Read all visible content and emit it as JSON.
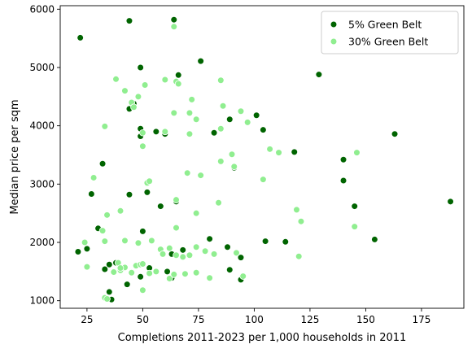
{
  "chart_data": {
    "type": "scatter",
    "xlabel": "Completions 2011-2023 per 1,000 households in 2011",
    "ylabel": "Median price per sqm",
    "xlim": [
      13,
      194
    ],
    "ylim": [
      870,
      6060
    ],
    "xticks": [
      25,
      50,
      75,
      100,
      125,
      150,
      175
    ],
    "yticks": [
      1000,
      2000,
      3000,
      4000,
      5000,
      6000
    ],
    "grid": false,
    "legend_position": "top-right",
    "series": [
      {
        "name": "5% Green Belt",
        "color": "#006400",
        "points": [
          [
            22,
            5510
          ],
          [
            44,
            5800
          ],
          [
            64,
            5820
          ],
          [
            76,
            5110
          ],
          [
            49,
            5000
          ],
          [
            66,
            4870
          ],
          [
            129,
            4880
          ],
          [
            46,
            4380
          ],
          [
            44,
            4290
          ],
          [
            56,
            3900
          ],
          [
            49,
            3950
          ],
          [
            49,
            3820
          ],
          [
            60,
            3860
          ],
          [
            82,
            3880
          ],
          [
            89,
            4110
          ],
          [
            101,
            4180
          ],
          [
            104,
            3930
          ],
          [
            118,
            3550
          ],
          [
            32,
            3350
          ],
          [
            50,
            2190
          ],
          [
            140,
            3420
          ],
          [
            27,
            2830
          ],
          [
            44,
            2820
          ],
          [
            52,
            2860
          ],
          [
            58,
            2620
          ],
          [
            65,
            2700
          ],
          [
            140,
            3060
          ],
          [
            91,
            3280
          ],
          [
            145,
            2620
          ],
          [
            188,
            2700
          ],
          [
            163,
            3860
          ],
          [
            30,
            2240
          ],
          [
            80,
            2060
          ],
          [
            105,
            2020
          ],
          [
            114,
            2010
          ],
          [
            154,
            2050
          ],
          [
            21,
            1840
          ],
          [
            25,
            1890
          ],
          [
            88,
            1920
          ],
          [
            68,
            1870
          ],
          [
            63,
            1800
          ],
          [
            35,
            1620
          ],
          [
            38,
            1650
          ],
          [
            53,
            1560
          ],
          [
            61,
            1500
          ],
          [
            89,
            1530
          ],
          [
            94,
            1740
          ],
          [
            33,
            1540
          ],
          [
            49,
            1410
          ],
          [
            63,
            1390
          ],
          [
            94,
            1360
          ],
          [
            35,
            1150
          ],
          [
            43,
            1280
          ],
          [
            36,
            1020
          ]
        ]
      },
      {
        "name": "30% Green Belt",
        "color": "#90ee90",
        "points": [
          [
            64,
            5700
          ],
          [
            38,
            4800
          ],
          [
            60,
            4790
          ],
          [
            65,
            4760
          ],
          [
            66,
            4720
          ],
          [
            51,
            4700
          ],
          [
            85,
            4780
          ],
          [
            42,
            4600
          ],
          [
            48,
            4500
          ],
          [
            45,
            4400
          ],
          [
            72,
            4450
          ],
          [
            46,
            4320
          ],
          [
            86,
            4340
          ],
          [
            64,
            4220
          ],
          [
            71,
            4220
          ],
          [
            94,
            4250
          ],
          [
            50,
            3880
          ],
          [
            33,
            3990
          ],
          [
            60,
            3900
          ],
          [
            71,
            3860
          ],
          [
            74,
            4110
          ],
          [
            85,
            3950
          ],
          [
            97,
            4060
          ],
          [
            50,
            3650
          ],
          [
            107,
            3600
          ],
          [
            111,
            3540
          ],
          [
            146,
            3540
          ],
          [
            90,
            3510
          ],
          [
            85,
            3390
          ],
          [
            91,
            3300
          ],
          [
            70,
            3190
          ],
          [
            76,
            3150
          ],
          [
            104,
            3080
          ],
          [
            28,
            3110
          ],
          [
            52,
            3020
          ],
          [
            53,
            3050
          ],
          [
            34,
            2470
          ],
          [
            40,
            2540
          ],
          [
            65,
            2730
          ],
          [
            84,
            2680
          ],
          [
            24,
            2000
          ],
          [
            32,
            2200
          ],
          [
            65,
            2250
          ],
          [
            74,
            2500
          ],
          [
            119,
            2560
          ],
          [
            121,
            2360
          ],
          [
            145,
            2270
          ],
          [
            33,
            2020
          ],
          [
            42,
            2030
          ],
          [
            54,
            2030
          ],
          [
            48,
            1990
          ],
          [
            58,
            1880
          ],
          [
            59,
            1800
          ],
          [
            62,
            1900
          ],
          [
            65,
            1780
          ],
          [
            68,
            1750
          ],
          [
            71,
            1780
          ],
          [
            74,
            1920
          ],
          [
            78,
            1850
          ],
          [
            82,
            1800
          ],
          [
            92,
            1820
          ],
          [
            39,
            1650
          ],
          [
            42,
            1570
          ],
          [
            47,
            1600
          ],
          [
            49,
            1620
          ],
          [
            50,
            1630
          ],
          [
            53,
            1470
          ],
          [
            56,
            1500
          ],
          [
            37,
            1490
          ],
          [
            40,
            1520
          ],
          [
            45,
            1480
          ],
          [
            25,
            1580
          ],
          [
            33,
            1050
          ],
          [
            34,
            1030
          ],
          [
            50,
            1180
          ],
          [
            62,
            1380
          ],
          [
            64,
            1450
          ],
          [
            69,
            1460
          ],
          [
            74,
            1480
          ],
          [
            80,
            1390
          ],
          [
            95,
            1420
          ],
          [
            120,
            1760
          ],
          [
            40,
            1560
          ]
        ]
      }
    ]
  }
}
